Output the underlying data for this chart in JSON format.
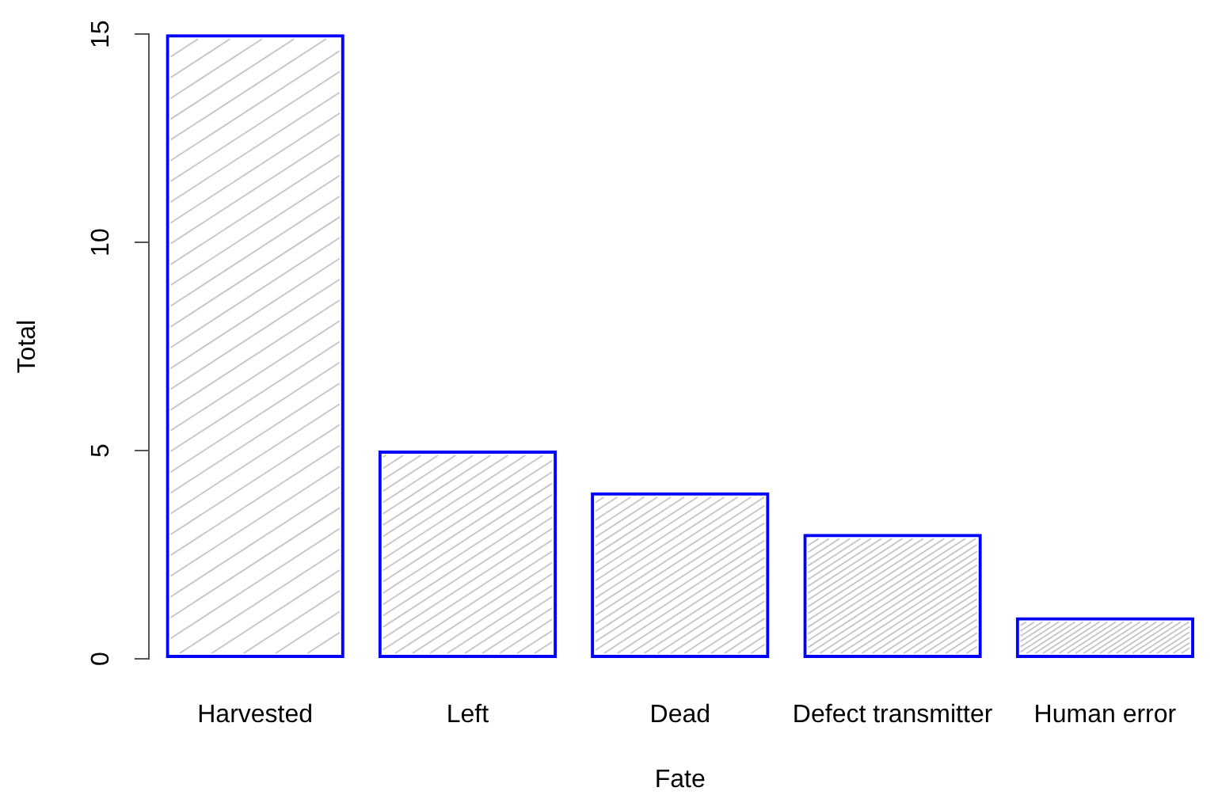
{
  "chart_data": {
    "type": "bar",
    "xlabel": "Fate",
    "ylabel": "Total",
    "categories": [
      "Harvested",
      "Left",
      "Dead",
      "Defect transmitter",
      "Human error"
    ],
    "values": [
      15,
      5,
      4,
      3,
      1
    ],
    "color": "#0000ff",
    "ylim": [
      0,
      15
    ],
    "yticks": [
      0,
      5,
      10,
      15
    ]
  }
}
